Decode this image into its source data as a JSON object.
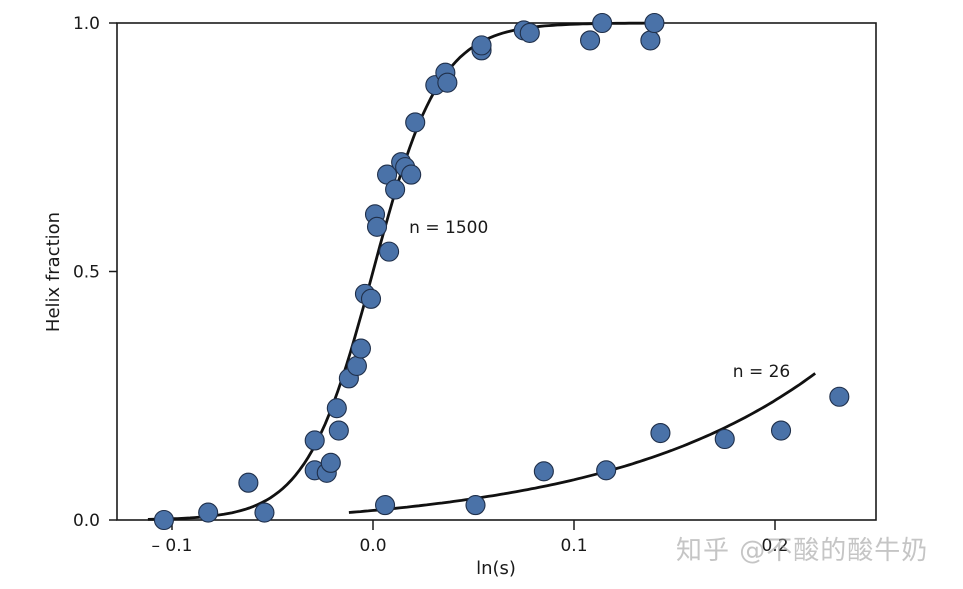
{
  "chart_data": {
    "type": "scatter",
    "title": "",
    "xlabel": "ln(s)",
    "ylabel": "Helix fraction",
    "xlim": [
      -0.128,
      0.25
    ],
    "ylim": [
      0.0,
      1.0
    ],
    "grid": false,
    "legend": null,
    "x_ticks": [
      {
        "value": -0.1,
        "label": "– 0.1"
      },
      {
        "value": 0.0,
        "label": "0.0"
      },
      {
        "value": 0.1,
        "label": "0.1"
      },
      {
        "value": 0.2,
        "label": "0.2"
      }
    ],
    "y_ticks": [
      {
        "value": 0.0,
        "label": "0.0"
      },
      {
        "value": 0.5,
        "label": "0.5"
      },
      {
        "value": 1.0,
        "label": "1.0"
      }
    ],
    "marker_color": "#4a72a8",
    "marker_edge_color": "#1f2f4a",
    "line_color": "#111111",
    "series": [
      {
        "name": "n = 1500",
        "annotation": {
          "text": "n = 1500",
          "x": 0.018,
          "y": 0.59
        },
        "fit_curve": {
          "type": "sigmoid",
          "x_range": [
            -0.112,
            0.14
          ],
          "midpoint": 0.0,
          "slope_k": 60
        },
        "points": [
          {
            "x": -0.104,
            "y": 0.0
          },
          {
            "x": -0.082,
            "y": 0.015
          },
          {
            "x": -0.062,
            "y": 0.075
          },
          {
            "x": -0.054,
            "y": 0.015
          },
          {
            "x": -0.029,
            "y": 0.16
          },
          {
            "x": -0.029,
            "y": 0.1
          },
          {
            "x": -0.023,
            "y": 0.095
          },
          {
            "x": -0.021,
            "y": 0.115
          },
          {
            "x": -0.017,
            "y": 0.18
          },
          {
            "x": -0.018,
            "y": 0.225
          },
          {
            "x": -0.012,
            "y": 0.285
          },
          {
            "x": -0.008,
            "y": 0.31
          },
          {
            "x": -0.006,
            "y": 0.345
          },
          {
            "x": -0.004,
            "y": 0.455
          },
          {
            "x": -0.001,
            "y": 0.445
          },
          {
            "x": 0.001,
            "y": 0.615
          },
          {
            "x": 0.002,
            "y": 0.59
          },
          {
            "x": 0.008,
            "y": 0.54
          },
          {
            "x": 0.007,
            "y": 0.695
          },
          {
            "x": 0.011,
            "y": 0.665
          },
          {
            "x": 0.014,
            "y": 0.72
          },
          {
            "x": 0.016,
            "y": 0.71
          },
          {
            "x": 0.019,
            "y": 0.695
          },
          {
            "x": 0.021,
            "y": 0.8
          },
          {
            "x": 0.031,
            "y": 0.875
          },
          {
            "x": 0.036,
            "y": 0.9
          },
          {
            "x": 0.037,
            "y": 0.88
          },
          {
            "x": 0.054,
            "y": 0.945
          },
          {
            "x": 0.054,
            "y": 0.955
          },
          {
            "x": 0.075,
            "y": 0.985
          },
          {
            "x": 0.078,
            "y": 0.98
          },
          {
            "x": 0.108,
            "y": 0.965
          },
          {
            "x": 0.114,
            "y": 1.0
          },
          {
            "x": 0.138,
            "y": 0.965
          },
          {
            "x": 0.14,
            "y": 1.0
          }
        ]
      },
      {
        "name": "n = 26",
        "annotation": {
          "text": "n = 26",
          "x": 0.179,
          "y": 0.3
        },
        "fit_curve": {
          "type": "exponential-rise",
          "x_range": [
            -0.012,
            0.22
          ],
          "y_range": [
            0.015,
            0.295
          ]
        },
        "points": [
          {
            "x": 0.006,
            "y": 0.03
          },
          {
            "x": 0.051,
            "y": 0.03
          },
          {
            "x": 0.085,
            "y": 0.098
          },
          {
            "x": 0.116,
            "y": 0.1
          },
          {
            "x": 0.143,
            "y": 0.175
          },
          {
            "x": 0.175,
            "y": 0.163
          },
          {
            "x": 0.203,
            "y": 0.18
          },
          {
            "x": 0.232,
            "y": 0.248
          }
        ]
      }
    ]
  },
  "watermark": {
    "text": "知乎 @不酸的酸牛奶"
  }
}
